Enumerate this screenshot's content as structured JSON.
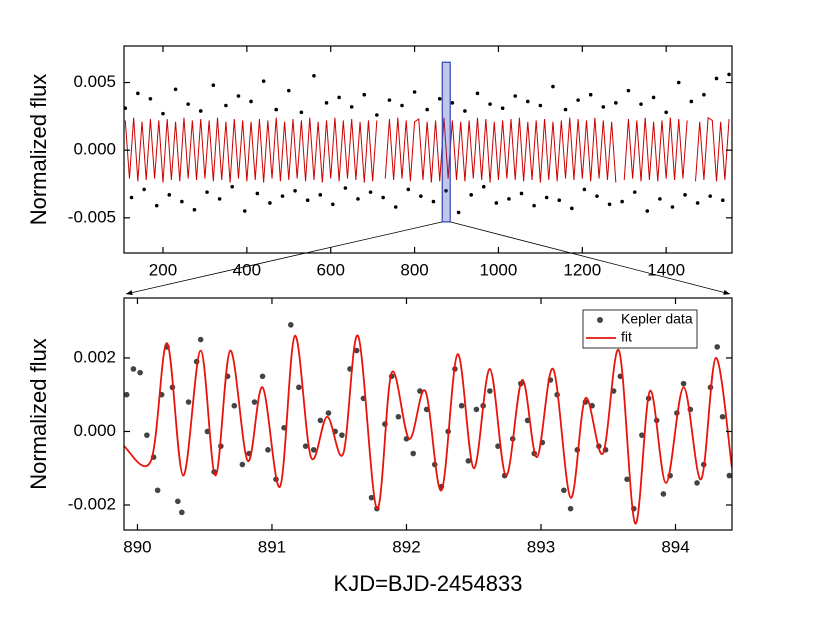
{
  "chart_data": [
    {
      "type": "scatter",
      "ylabel": "Normalized flux",
      "xlim": [
        107,
        1557
      ],
      "ylim": [
        -0.0076,
        0.0077
      ],
      "xticks": [
        200,
        400,
        600,
        800,
        1000,
        1200,
        1400
      ],
      "yticks": [
        -0.005,
        {
          "value": 0,
          "label": "0.000"
        },
        0.005
      ],
      "highlight": {
        "xlim": [
          866,
          885
        ],
        "ylim": [
          -0.0053,
          0.0065
        ],
        "color": "#3344bb"
      },
      "series": [
        {
          "style": "markers",
          "color": "#000000",
          "x": [
            110,
            125,
            140,
            155,
            170,
            185,
            200,
            215,
            230,
            245,
            260,
            275,
            290,
            305,
            320,
            335,
            350,
            365,
            380,
            395,
            410,
            425,
            440,
            455,
            470,
            485,
            500,
            515,
            530,
            545,
            560,
            575,
            590,
            605,
            620,
            635,
            650,
            665,
            680,
            695,
            710,
            725,
            740,
            755,
            770,
            785,
            800,
            815,
            830,
            845,
            860,
            875,
            890,
            905,
            920,
            935,
            950,
            965,
            980,
            995,
            1010,
            1025,
            1040,
            1055,
            1070,
            1085,
            1100,
            1115,
            1130,
            1145,
            1160,
            1175,
            1190,
            1205,
            1220,
            1235,
            1250,
            1265,
            1280,
            1295,
            1310,
            1325,
            1340,
            1355,
            1370,
            1385,
            1400,
            1415,
            1430,
            1445,
            1460,
            1475,
            1490,
            1505,
            1520,
            1535,
            1550
          ],
          "values": [
            0.0031,
            -0.0035,
            0.0042,
            -0.0029,
            0.0038,
            -0.0041,
            0.0027,
            -0.0033,
            0.0045,
            -0.0038,
            0.0034,
            -0.0044,
            0.0029,
            -0.0031,
            0.0048,
            -0.0036,
            0.0033,
            -0.0027,
            0.004,
            -0.0045,
            0.0036,
            -0.0032,
            0.0051,
            -0.0039,
            0.003,
            -0.0034,
            0.0044,
            -0.003,
            0.0028,
            -0.0037,
            0.0055,
            -0.0033,
            0.0035,
            -0.004,
            0.0039,
            -0.0028,
            0.0032,
            -0.0036,
            0.0041,
            -0.0031,
            0.0026,
            -0.0035,
            0.0037,
            -0.0042,
            0.0033,
            -0.0029,
            0.0043,
            -0.0034,
            0.003,
            -0.0038,
            0.0038,
            -0.003,
            0.0035,
            -0.0046,
            0.0029,
            -0.0033,
            0.0042,
            -0.0027,
            0.0034,
            -0.0039,
            0.0031,
            -0.0036,
            0.004,
            -0.0032,
            0.0036,
            -0.0041,
            0.0033,
            -0.0035,
            0.0047,
            -0.0037,
            0.003,
            -0.0043,
            0.0037,
            -0.0029,
            0.0041,
            -0.0034,
            0.0032,
            -0.004,
            0.0035,
            -0.0038,
            0.0044,
            -0.0031,
            0.0034,
            -0.0045,
            0.0039,
            -0.0036,
            0.0028,
            -0.0042,
            0.005,
            -0.0033,
            0.0036,
            -0.0039,
            0.0041,
            -0.0034,
            0.0053,
            -0.0037,
            0.0056
          ]
        },
        {
          "style": "line",
          "color": "#cc0000",
          "x": [
            110,
            120,
            130,
            140,
            150,
            160,
            170,
            180,
            190,
            200,
            210,
            220,
            230,
            240,
            250,
            260,
            270,
            280,
            290,
            300,
            310,
            320,
            330,
            340,
            350,
            360,
            370,
            380,
            390,
            400,
            410,
            420,
            430,
            440,
            450,
            460,
            470,
            480,
            490,
            500,
            510,
            520,
            530,
            540,
            550,
            560,
            570,
            580,
            590,
            600,
            610,
            620,
            630,
            640,
            650,
            660,
            670,
            680,
            690,
            700,
            710,
            720,
            730,
            740,
            750,
            760,
            770,
            780,
            790,
            800,
            810,
            820,
            830,
            840,
            850,
            860,
            870,
            880,
            890,
            900,
            910,
            920,
            930,
            940,
            950,
            960,
            970,
            980,
            990,
            1000,
            1010,
            1020,
            1030,
            1040,
            1050,
            1060,
            1070,
            1080,
            1090,
            1100,
            1110,
            1120,
            1130,
            1140,
            1150,
            1160,
            1170,
            1180,
            1190,
            1200,
            1210,
            1220,
            1230,
            1240,
            1250,
            1260,
            1270,
            1280,
            1290,
            1300,
            1310,
            1320,
            1330,
            1340,
            1350,
            1360,
            1370,
            1380,
            1390,
            1400,
            1410,
            1420,
            1430,
            1440,
            1450,
            1460,
            1470,
            1480,
            1490,
            1500,
            1510,
            1520,
            1530,
            1540,
            1550
          ],
          "values": [
            0.0022,
            -0.0021,
            0.0024,
            -0.0023,
            0.0021,
            -0.0022,
            0.0023,
            -0.0021,
            0.0022,
            -0.0024,
            0.0023,
            -0.0022,
            0.0021,
            -0.0023,
            0.0024,
            -0.0021,
            0.0022,
            -0.0022,
            0.0023,
            -0.0021,
            0.0022,
            -0.0023,
            0.0024,
            -0.0022,
            0.0021,
            -0.0024,
            0.0023,
            -0.0021,
            0.0022,
            -0.0023,
            0.0021,
            -0.0022,
            0.0023,
            -0.0024,
            0.0022,
            -0.0021,
            0.0024,
            -0.0023,
            0.0021,
            -0.0022,
            0.0023,
            -0.0021,
            0.0022,
            -0.0023,
            0.0024,
            -0.0022,
            0.0021,
            -0.0024,
            0.0022,
            -0.0021,
            0.0024,
            -0.0023,
            0.0022,
            -0.0021,
            0.0023,
            -0.0022,
            0.0021,
            -0.0024,
            0.0022,
            -0.0023,
            0.0022,
            null,
            -0.0021,
            0.0023,
            -0.0022,
            0.0024,
            -0.0021,
            0.0022,
            -0.0023,
            0.0021,
            0.0023,
            -0.0022,
            0.0021,
            -0.0024,
            0.0022,
            -0.0023,
            0.0024,
            -0.0021,
            0.0022,
            -0.0022,
            0.0021,
            -0.0023,
            0.0022,
            -0.0021,
            0.0024,
            -0.0022,
            0.0023,
            -0.0024,
            0.0021,
            -0.0022,
            0.0022,
            -0.0021,
            0.0023,
            -0.0022,
            0.0024,
            -0.0023,
            0.0021,
            -0.0022,
            0.0022,
            -0.0024,
            0.0023,
            -0.0022,
            0.0021,
            -0.0023,
            0.0022,
            -0.0021,
            0.0024,
            -0.0022,
            0.0023,
            -0.0021,
            0.0022,
            -0.0023,
            0.0024,
            -0.0021,
            0.0022,
            -0.0022,
            0.0021,
            -0.0024,
            null,
            -0.0022,
            0.0023,
            -0.0021,
            0.0022,
            -0.0023,
            0.0024,
            -0.0022,
            0.0021,
            -0.0023,
            0.0022,
            -0.0021,
            0.0024,
            -0.0022,
            0.0023,
            -0.0021,
            0.0022,
            null,
            -0.0023,
            0.0021,
            -0.0022,
            0.0024,
            0.0022,
            -0.0023,
            0.0021,
            -0.0022,
            0.0023
          ]
        }
      ]
    },
    {
      "type": "scatter",
      "ylabel": "Normalized flux",
      "xlabel": "KJD=BJD-2454833",
      "xlim": [
        889.9,
        894.42
      ],
      "ylim": [
        -0.00268,
        0.00363
      ],
      "xticks": [
        890,
        891,
        892,
        893,
        894
      ],
      "yticks": [
        -0.002,
        {
          "value": 0,
          "label": "0.000"
        },
        0.002
      ],
      "legend": "upper right",
      "series": [
        {
          "name": "Kepler data",
          "style": "markers",
          "color": "#444444",
          "x": [
            889.92,
            889.97,
            890.02,
            890.07,
            890.12,
            890.15,
            890.18,
            890.22,
            890.26,
            890.3,
            890.33,
            890.38,
            890.44,
            890.47,
            890.52,
            890.57,
            890.62,
            890.67,
            890.72,
            890.78,
            890.83,
            890.87,
            890.93,
            890.97,
            891.03,
            891.09,
            891.14,
            891.2,
            891.25,
            891.31,
            891.36,
            891.42,
            891.47,
            891.52,
            891.58,
            891.63,
            891.68,
            891.74,
            891.78,
            891.84,
            891.89,
            891.94,
            892.0,
            892.05,
            892.1,
            892.15,
            892.21,
            892.26,
            892.31,
            892.36,
            892.41,
            892.46,
            892.52,
            892.57,
            892.62,
            892.68,
            892.73,
            892.79,
            892.85,
            892.9,
            892.95,
            893.01,
            893.07,
            893.12,
            893.17,
            893.22,
            893.27,
            893.33,
            893.38,
            893.43,
            893.48,
            893.54,
            893.59,
            893.64,
            893.69,
            893.75,
            893.8,
            893.86,
            893.91,
            893.96,
            894.01,
            894.06,
            894.11,
            894.16,
            894.21,
            894.26,
            894.31,
            894.35,
            894.4
          ],
          "values": [
            0.001,
            0.0017,
            0.0016,
            -0.0001,
            -0.0007,
            -0.0016,
            0.001,
            0.0023,
            0.0012,
            -0.0019,
            -0.0022,
            0.0008,
            0.0019,
            0.0025,
            0.0,
            -0.0011,
            -0.0004,
            0.0015,
            0.0007,
            -0.0009,
            -0.0006,
            0.0008,
            0.0015,
            -0.0005,
            -0.0013,
            0.0001,
            0.0029,
            0.0012,
            -0.0004,
            -0.0005,
            0.0003,
            0.0005,
            0.0,
            -0.0001,
            0.0017,
            0.0022,
            0.0009,
            -0.0018,
            -0.0021,
            0.0002,
            0.0015,
            0.0004,
            -0.0002,
            -0.0006,
            0.0011,
            0.0006,
            -0.0009,
            -0.0015,
            0.0,
            0.0017,
            0.0007,
            -0.0008,
            0.0006,
            0.0007,
            0.0011,
            -0.0004,
            -0.0012,
            -0.0002,
            0.0013,
            0.0003,
            -0.0006,
            -0.0003,
            0.0014,
            0.001,
            -0.0016,
            -0.0021,
            -0.0005,
            0.0008,
            0.0007,
            -0.0004,
            -0.0005,
            0.0011,
            0.0015,
            -0.0013,
            -0.0021,
            -0.0001,
            0.0009,
            0.0003,
            -0.0017,
            -0.0012,
            0.0005,
            0.0013,
            0.0006,
            -0.0014,
            -0.0009,
            0.0012,
            0.0023,
            0.0004,
            -0.0012
          ]
        },
        {
          "name": "fit",
          "style": "line",
          "smooth": true,
          "color": "#e8140c",
          "x": [
            889.9,
            890.1,
            890.22,
            890.34,
            890.47,
            890.58,
            890.69,
            890.82,
            890.93,
            891.06,
            891.17,
            891.29,
            891.41,
            891.53,
            891.64,
            891.78,
            891.89,
            892.02,
            892.14,
            892.26,
            892.38,
            892.5,
            892.62,
            892.74,
            892.86,
            892.97,
            893.09,
            893.22,
            893.33,
            893.46,
            893.58,
            893.7,
            893.81,
            893.93,
            894.06,
            894.19,
            894.3,
            894.42
          ],
          "values": [
            -0.0004,
            -0.0008,
            0.0024,
            -0.0012,
            0.0022,
            -0.0012,
            0.0022,
            -0.0008,
            0.0012,
            -0.0015,
            0.0026,
            -0.0007,
            0.0004,
            -0.0006,
            0.0026,
            -0.0021,
            0.0016,
            -0.0002,
            0.0011,
            -0.0016,
            0.0021,
            -0.001,
            0.0017,
            -0.0012,
            0.0014,
            -0.0007,
            0.0017,
            -0.0018,
            0.0009,
            -0.0006,
            0.0022,
            -0.0025,
            0.0011,
            -0.0014,
            0.0012,
            -0.0013,
            0.002,
            -0.001
          ]
        }
      ]
    }
  ]
}
